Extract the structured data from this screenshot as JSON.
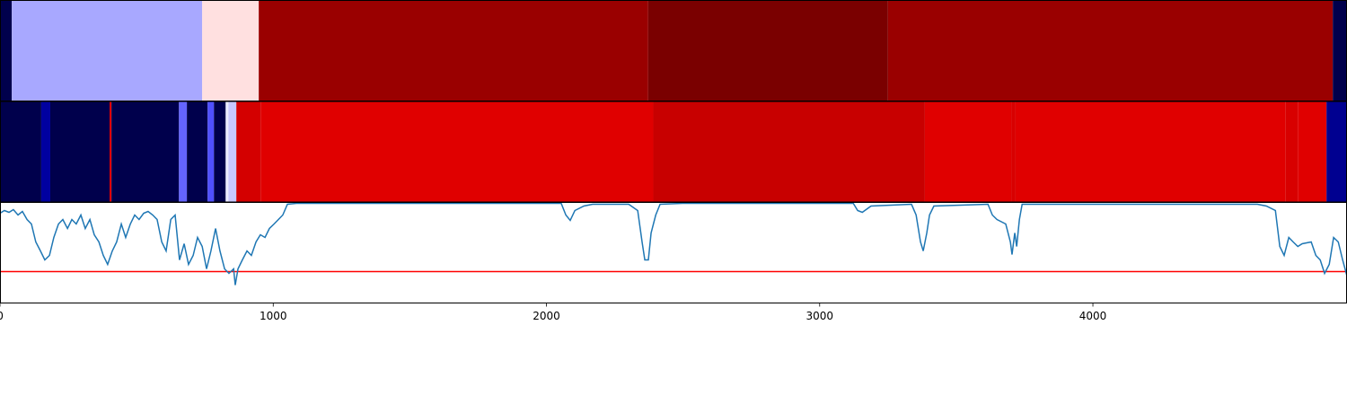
{
  "chart_data": [
    {
      "type": "strip",
      "xlim": [
        0,
        4930
      ],
      "bins": [
        0,
        43,
        740,
        947,
        2372,
        3250,
        4878,
        4930
      ],
      "colors": [
        "#00004c",
        "#a8a8ff",
        "#ffe0e0",
        "#9a0000",
        "#7a0000",
        "#9a0000",
        "#00004c"
      ]
    },
    {
      "type": "strip",
      "xlim": [
        0,
        4930
      ],
      "bins": [
        0,
        151,
        184,
        401,
        408,
        655,
        684,
        760,
        783,
        826,
        836,
        865,
        954,
        2391,
        3385,
        3701,
        3717,
        4704,
        4750,
        4855,
        4930
      ],
      "colors": [
        "#00004c",
        "#0000a0",
        "#00004c",
        "#e00000",
        "#00004c",
        "#6464ff",
        "#00004c",
        "#5050ff",
        "#00004c",
        "#ececff",
        "#c8c8ff",
        "#d40000",
        "#e00000",
        "#c80000",
        "#e00000",
        "#d80000",
        "#e00000",
        "#d80000",
        "#e00000",
        "#000090"
      ]
    },
    {
      "type": "line",
      "xlim": [
        0,
        4930
      ],
      "ylim": [
        0,
        112
      ],
      "xticks": [
        0,
        1000,
        2000,
        3000,
        4000
      ],
      "x": [
        0,
        16,
        33,
        49,
        66,
        82,
        99,
        115,
        131,
        148,
        164,
        181,
        197,
        214,
        230,
        247,
        263,
        279,
        296,
        312,
        329,
        345,
        362,
        378,
        394,
        411,
        427,
        444,
        460,
        477,
        493,
        509,
        526,
        542,
        559,
        575,
        592,
        608,
        625,
        641,
        657,
        674,
        690,
        707,
        723,
        740,
        756,
        772,
        789,
        805,
        822,
        838,
        855,
        861,
        871,
        887,
        904,
        920,
        937,
        953,
        970,
        986,
        1003,
        1019,
        1035,
        1052,
        1085,
        2054,
        2071,
        2087,
        2104,
        2137,
        2169,
        2301,
        2334,
        2350,
        2360,
        2373,
        2383,
        2400,
        2416,
        2498,
        3123,
        3139,
        3156,
        3188,
        3336,
        3353,
        3369,
        3379,
        3392,
        3402,
        3418,
        3616,
        3632,
        3649,
        3681,
        3698,
        3704,
        3714,
        3721,
        3731,
        3741,
        4602,
        4635,
        4668,
        4684,
        4700,
        4717,
        4733,
        4750,
        4766,
        4799,
        4816,
        4832,
        4848,
        4865,
        4881,
        4898,
        4914,
        4930
      ],
      "series": [
        {
          "color": "#1f77b4",
          "values": [
            100,
            103,
            101,
            104,
            98,
            102,
            93,
            88,
            68,
            58,
            48,
            53,
            73,
            88,
            93,
            83,
            93,
            88,
            98,
            83,
            93,
            76,
            68,
            53,
            43,
            58,
            68,
            88,
            73,
            88,
            98,
            93,
            100,
            102,
            98,
            93,
            68,
            58,
            93,
            98,
            48,
            66,
            43,
            53,
            73,
            63,
            38,
            58,
            83,
            58,
            38,
            33,
            38,
            20,
            38,
            48,
            58,
            53,
            68,
            76,
            73,
            83,
            88,
            93,
            98,
            110,
            111,
            111,
            98,
            92,
            103,
            108,
            110,
            110,
            103,
            68,
            48,
            48,
            78,
            98,
            110,
            111,
            111,
            103,
            101,
            108,
            110,
            98,
            68,
            58,
            78,
            98,
            108,
            110,
            98,
            93,
            88,
            68,
            54,
            78,
            63,
            93,
            110,
            110,
            108,
            103,
            63,
            53,
            73,
            68,
            63,
            66,
            68,
            53,
            48,
            33,
            43,
            73,
            68,
            48,
            30
          ]
        }
      ],
      "hline": {
        "value": 35,
        "color": "#ff0000"
      }
    }
  ]
}
